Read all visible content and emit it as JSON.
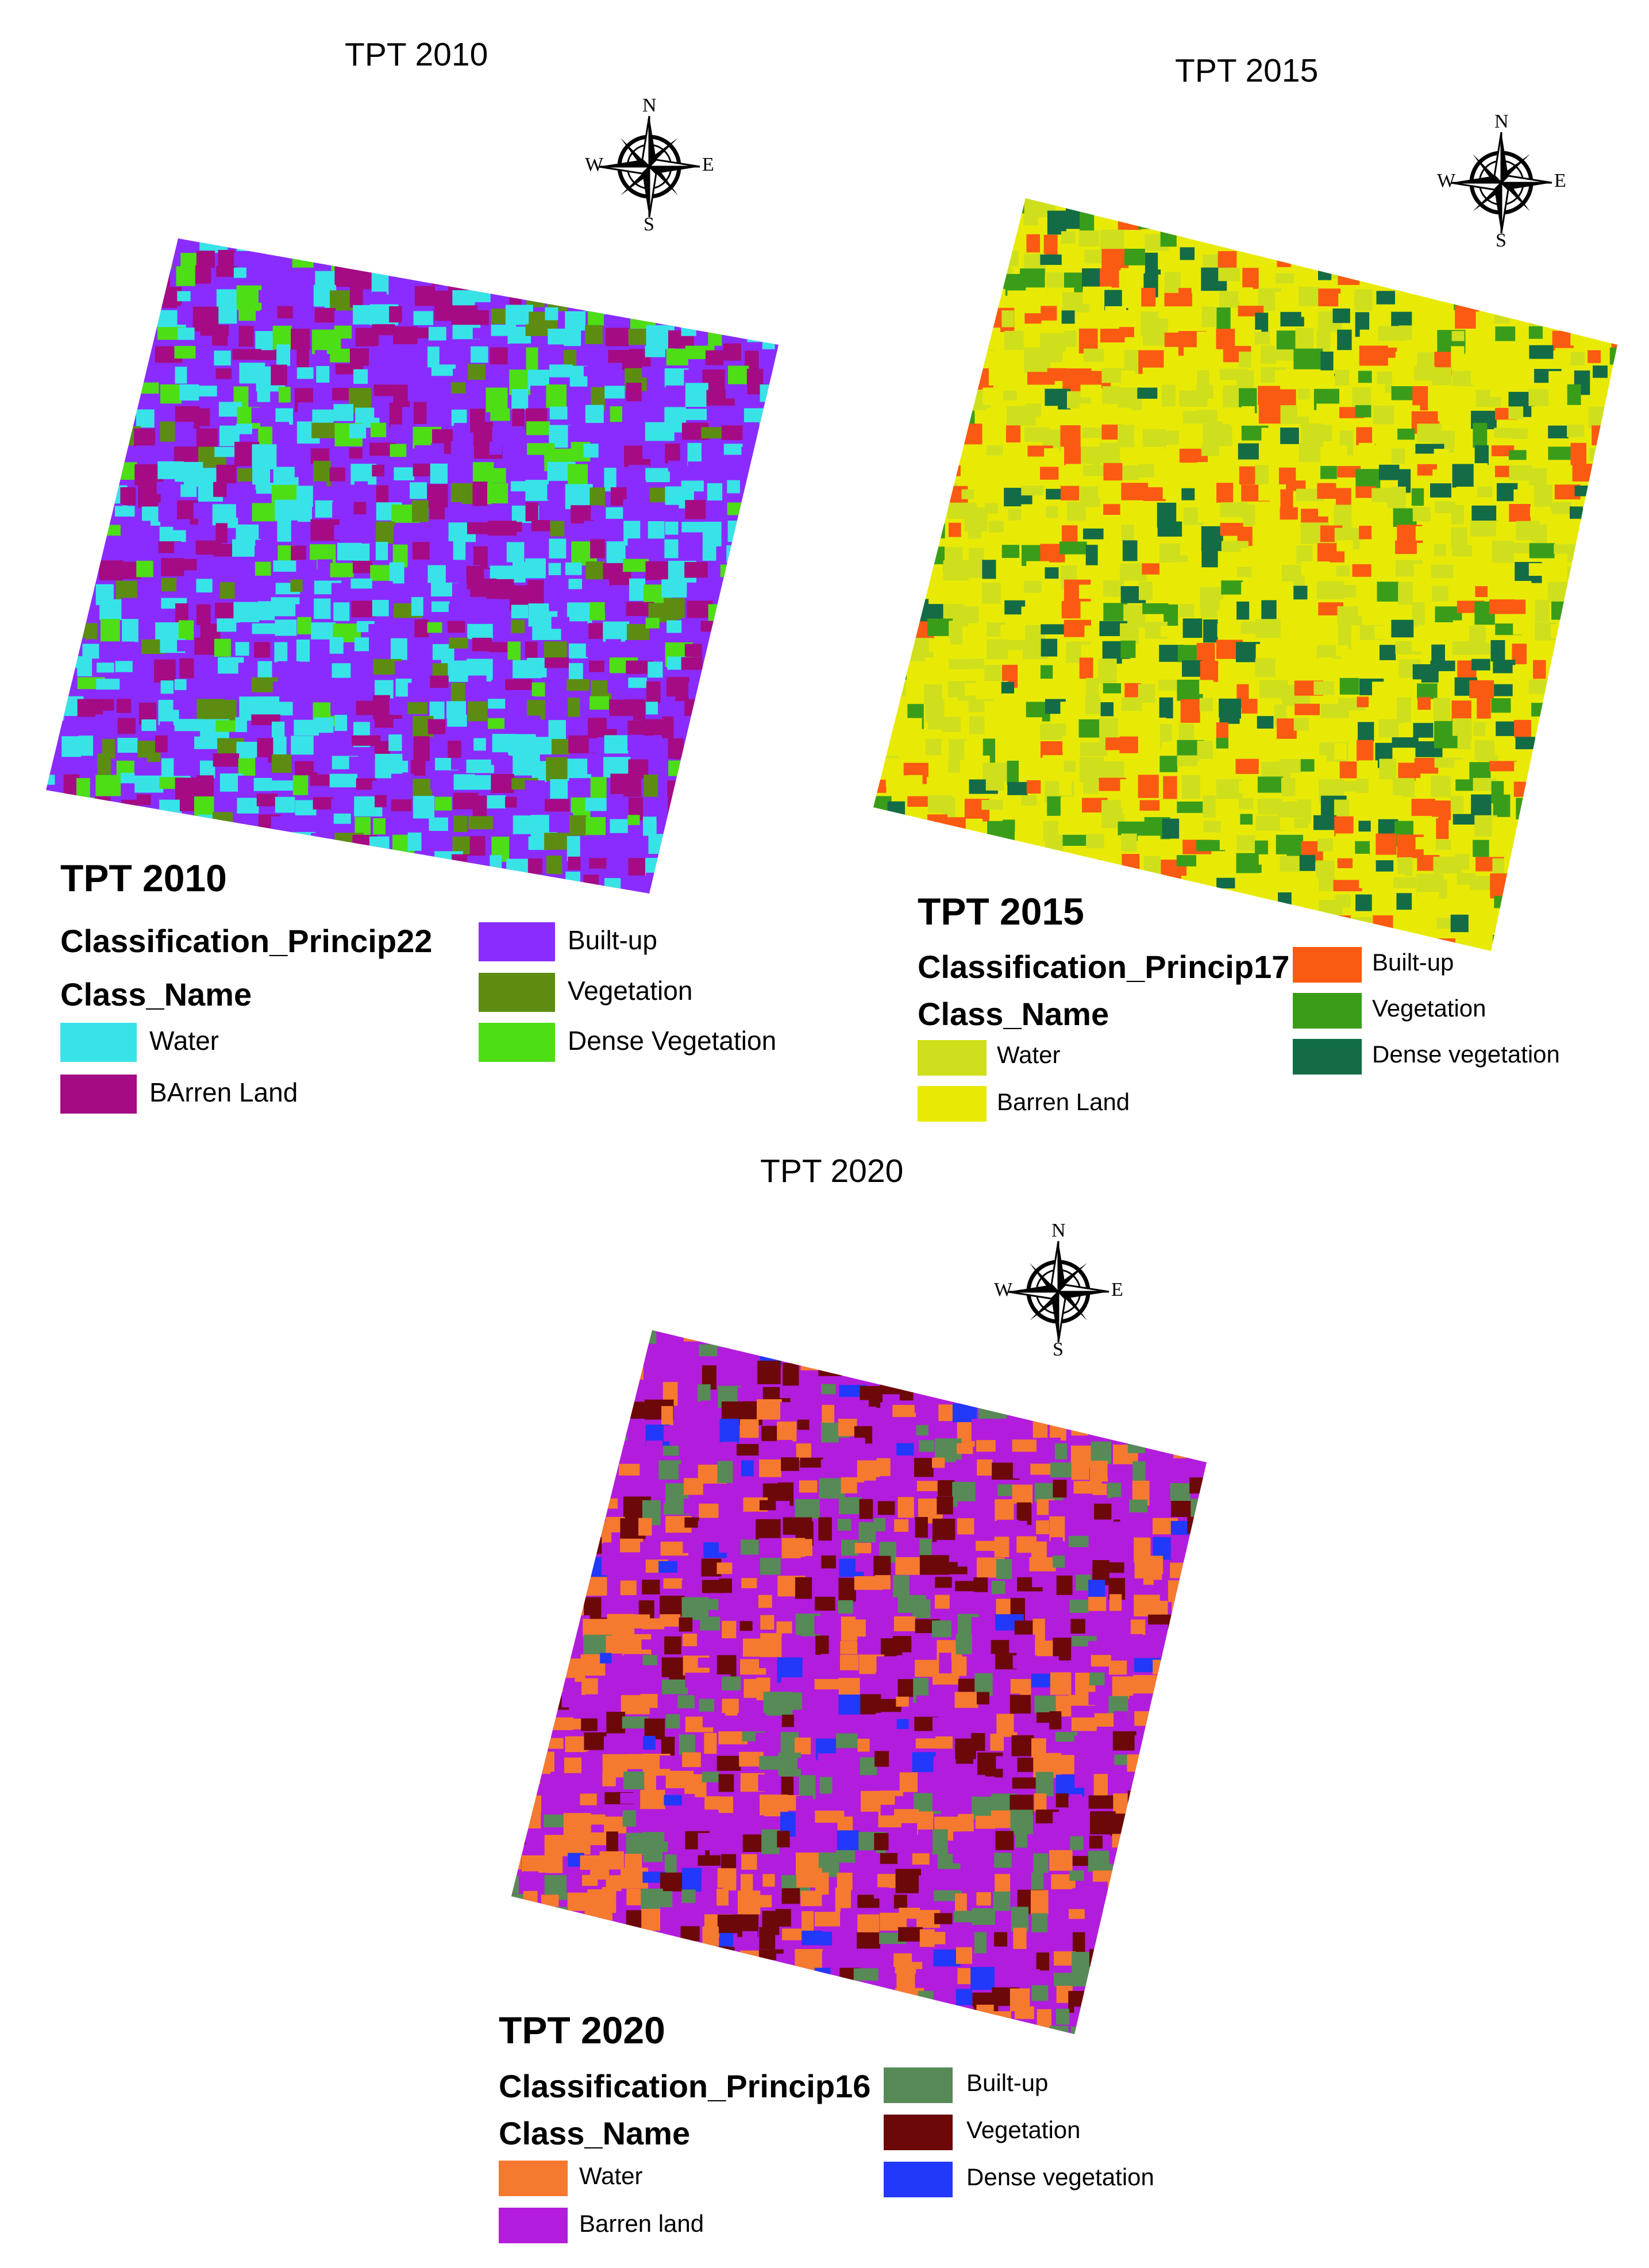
{
  "compass": {
    "n": "N",
    "s": "S",
    "e": "E",
    "w": "W"
  },
  "maps": [
    {
      "map_title": "TPT 2010",
      "legend": {
        "title": "TPT 2010",
        "layer": "Classification_Princip22",
        "field": "Class_Name",
        "classes": [
          {
            "label": "Water",
            "color": "#38e3e8"
          },
          {
            "label": "BArren Land",
            "color": "#a50b84"
          },
          {
            "label": "Built-up",
            "color": "#8a2cff"
          },
          {
            "label": "Vegetation",
            "color": "#5c8d12"
          },
          {
            "label": "Dense Vegetation",
            "color": "#4dde16"
          }
        ]
      }
    },
    {
      "map_title": "TPT 2015",
      "legend": {
        "title": "TPT 2015",
        "layer": "Classification_Princip17",
        "field": "Class_Name",
        "classes": [
          {
            "label": "Water",
            "color": "#cfdf1c"
          },
          {
            "label": "Barren Land",
            "color": "#e8ea06"
          },
          {
            "label": "Built-up",
            "color": "#fb5a12"
          },
          {
            "label": "Vegetation",
            "color": "#3a9d1a"
          },
          {
            "label": "Dense vegetation",
            "color": "#136c46"
          }
        ]
      }
    },
    {
      "map_title": "TPT 2020",
      "legend": {
        "title": "TPT 2020",
        "layer": "Classification_Princip16",
        "field": "Class_Name",
        "classes": [
          {
            "label": "Water",
            "color": "#f57a2f"
          },
          {
            "label": "Barren land",
            "color": "#b21cdc"
          },
          {
            "label": "Built-up",
            "color": "#578a57"
          },
          {
            "label": "Vegetation",
            "color": "#6c0808"
          },
          {
            "label": "Dense vegetation",
            "color": "#2238fb"
          }
        ]
      }
    }
  ]
}
